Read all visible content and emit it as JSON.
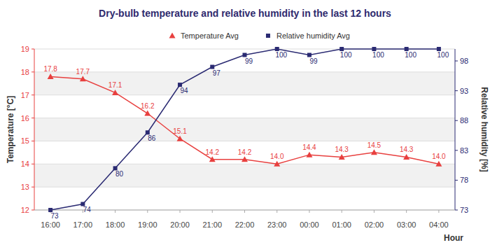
{
  "chart_data": {
    "type": "line",
    "title": "Dry-bulb temperature and relative humidity in the last 12 hours",
    "x_label": "Hour",
    "y_label": "Temperature [°C]",
    "y2_label": "Relative humidity [%]",
    "categories": [
      "16:00",
      "17:00",
      "18:00",
      "19:00",
      "20:00",
      "21:00",
      "22:00",
      "23:00",
      "00:00",
      "01:00",
      "02:00",
      "03:00",
      "04:00"
    ],
    "series": [
      {
        "name": "Temperature Avg",
        "color": "#e8403f",
        "marker": "triangle",
        "axis": "y",
        "values": [
          17.8,
          17.7,
          17.1,
          16.2,
          15.1,
          14.2,
          14.2,
          14.0,
          14.4,
          14.3,
          14.5,
          14.3,
          14.0
        ],
        "value_labels": [
          "17.8",
          "17.7",
          "17.1",
          "16.2",
          "15.1",
          "14.2",
          "14.2",
          "14.0",
          "14.4",
          "14.3",
          "14.5",
          "14.3",
          "14.0"
        ]
      },
      {
        "name": "Relative humidity Avg",
        "color": "#2a2a72",
        "marker": "square",
        "axis": "y2",
        "values": [
          73,
          74,
          80,
          86,
          94,
          97,
          99,
          100,
          99,
          100,
          100,
          100,
          100
        ]
      }
    ],
    "ylim": [
      12,
      19
    ],
    "yticks": [
      12,
      13,
      14,
      15,
      16,
      17,
      18,
      19
    ],
    "y2lim": [
      73,
      100
    ],
    "y2ticks": [
      73,
      78,
      83,
      88,
      93,
      98
    ],
    "grid": true,
    "legend": "top",
    "data_labels": true
  }
}
